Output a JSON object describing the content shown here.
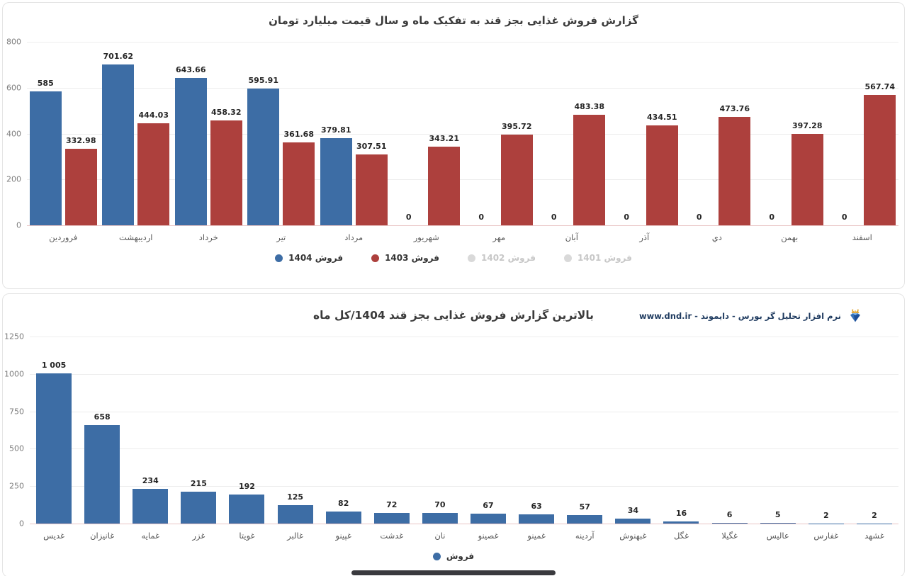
{
  "chart_data": [
    {
      "type": "bar",
      "title": "گزارش فروش غذایی بجز قند به تفکیک ماه و سال قیمت میلیارد تومان",
      "categories": [
        "فروردین",
        "اردیبهشت",
        "خرداد",
        "تیر",
        "مرداد",
        "شهریور",
        "مهر",
        "آبان",
        "آذر",
        "دي",
        "بهمن",
        "اسفند"
      ],
      "series": [
        {
          "name": "فروش 1404",
          "color": "#3d6da5",
          "values": [
            585,
            701.62,
            643.66,
            595.91,
            379.81,
            0,
            0,
            0,
            0,
            0,
            0,
            0
          ],
          "labels": [
            "585",
            "701.62",
            "643.66",
            "595.91",
            "379.81",
            "0",
            "0",
            "0",
            "0",
            "0",
            "0",
            "0"
          ]
        },
        {
          "name": "فروش 1403",
          "color": "#ad403d",
          "values": [
            332.98,
            444.03,
            458.32,
            361.68,
            307.51,
            343.21,
            395.72,
            483.38,
            434.51,
            473.76,
            397.28,
            567.74
          ],
          "labels": [
            "332.98",
            "444.03",
            "458.32",
            "361.68",
            "307.51",
            "343.21",
            "395.72",
            "483.38",
            "434.51",
            "473.76",
            "397.28",
            "567.74"
          ]
        }
      ],
      "legend": [
        {
          "label": "فروش 1404",
          "color": "#3d6da5",
          "disabled": false
        },
        {
          "label": "فروش 1403",
          "color": "#ad403d",
          "disabled": false
        },
        {
          "label": "فروش 1402",
          "color": "#d9d9d9",
          "disabled": true
        },
        {
          "label": "فروش 1401",
          "color": "#d9d9d9",
          "disabled": true
        }
      ],
      "ylim": [
        0,
        800
      ],
      "yticks": [
        0,
        200,
        400,
        600,
        800
      ],
      "grid": true,
      "legend_position": "bottom"
    },
    {
      "type": "bar",
      "title": "بالاترین گزارش فروش غذایی بجز قند 1404/کل ماه",
      "watermark": "نرم افزار تحلیل گر بورس - دایموند - www.dnd.ir",
      "categories": [
        "غدیس",
        "غانیزان",
        "غمایه",
        "غزر",
        "غویتا",
        "غالبر",
        "غپینو",
        "غدشت",
        "نان",
        "غصینو",
        "غمینو",
        "آردینه",
        "غبهنوش",
        "غگل",
        "غگیلا",
        "عالیس",
        "غفارس",
        "غشهد"
      ],
      "series": [
        {
          "name": "فروش",
          "color": "#3d6da5",
          "values": [
            1005,
            658,
            234,
            215,
            192,
            125,
            82,
            72,
            70,
            67,
            63,
            57,
            34,
            16,
            6,
            5,
            2,
            2
          ],
          "labels": [
            "1 005",
            "658",
            "234",
            "215",
            "192",
            "125",
            "82",
            "72",
            "70",
            "67",
            "63",
            "57",
            "34",
            "16",
            "6",
            "5",
            "2",
            "2"
          ]
        }
      ],
      "legend": [
        {
          "label": "فروش",
          "color": "#3d6da5",
          "disabled": false
        }
      ],
      "ylim": [
        0,
        1250
      ],
      "yticks": [
        0,
        250,
        500,
        750,
        1000,
        1250
      ],
      "grid": true,
      "legend_position": "bottom"
    }
  ]
}
